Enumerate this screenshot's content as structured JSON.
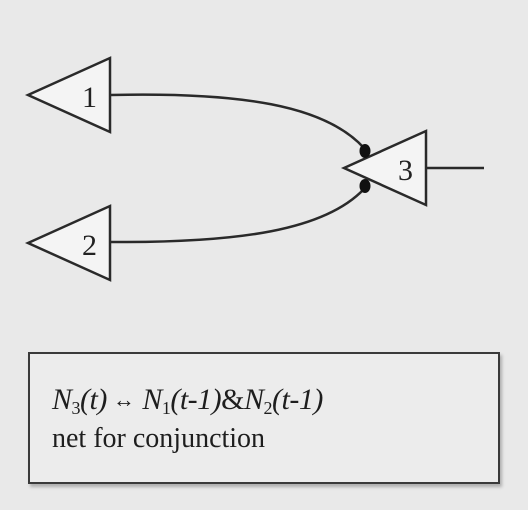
{
  "nodes": [
    {
      "id": "n1",
      "label": "1"
    },
    {
      "id": "n2",
      "label": "2"
    },
    {
      "id": "n3",
      "label": "3"
    }
  ],
  "edges": [
    {
      "from": "1",
      "to": "3",
      "type": "excitatory"
    },
    {
      "from": "2",
      "to": "3",
      "type": "excitatory"
    }
  ],
  "caption": {
    "formula": {
      "lhs_var": "N",
      "lhs_sub": "3",
      "lhs_arg": "(t)",
      "op": "↔",
      "a_var": "N",
      "a_sub": "1",
      "a_arg": "(t-1)",
      "and": "&",
      "b_var": "N",
      "b_sub": "2",
      "b_arg": "(t-1)"
    },
    "text": "net for conjunction"
  }
}
